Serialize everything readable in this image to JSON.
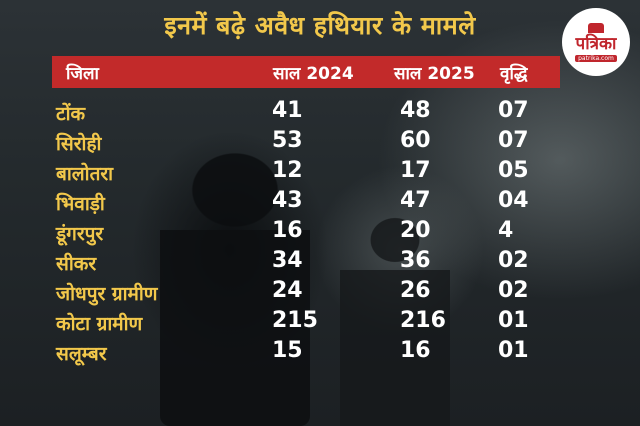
{
  "title": "इनमें बढ़े अवैध हथियार के मामले",
  "logo": {
    "name": "पत्रिका",
    "url": "patrika.com"
  },
  "headers": {
    "district": "जिला",
    "y2024": "साल 2024",
    "y2025": "साल 2025",
    "growth": "वृद्धि"
  },
  "rows": [
    {
      "district": "टोंक",
      "y2024": "41",
      "y2025": "48",
      "growth": "07"
    },
    {
      "district": "सिरोही",
      "y2024": "53",
      "y2025": "60",
      "growth": "07"
    },
    {
      "district": "बालोतरा",
      "y2024": "12",
      "y2025": "17",
      "growth": "05"
    },
    {
      "district": "भिवाड़ी",
      "y2024": "43",
      "y2025": "47",
      "growth": "04"
    },
    {
      "district": "डूंगरपुर",
      "y2024": "16",
      "y2025": "20",
      "growth": "4"
    },
    {
      "district": "सीकर",
      "y2024": "34",
      "y2025": "36",
      "growth": "02"
    },
    {
      "district": "जोधपुर ग्रामीण",
      "y2024": "24",
      "y2025": "26",
      "growth": "02"
    },
    {
      "district": "कोटा ग्रामीण",
      "y2024": "215",
      "y2025": "216",
      "growth": "01"
    },
    {
      "district": "सलूम्बर",
      "y2024": "15",
      "y2025": "16",
      "growth": "01"
    }
  ],
  "colors": {
    "header_bg": "#c22a2a",
    "title": "#f2c84b",
    "district_text": "#f2c84b",
    "value_text": "#ffffff"
  }
}
